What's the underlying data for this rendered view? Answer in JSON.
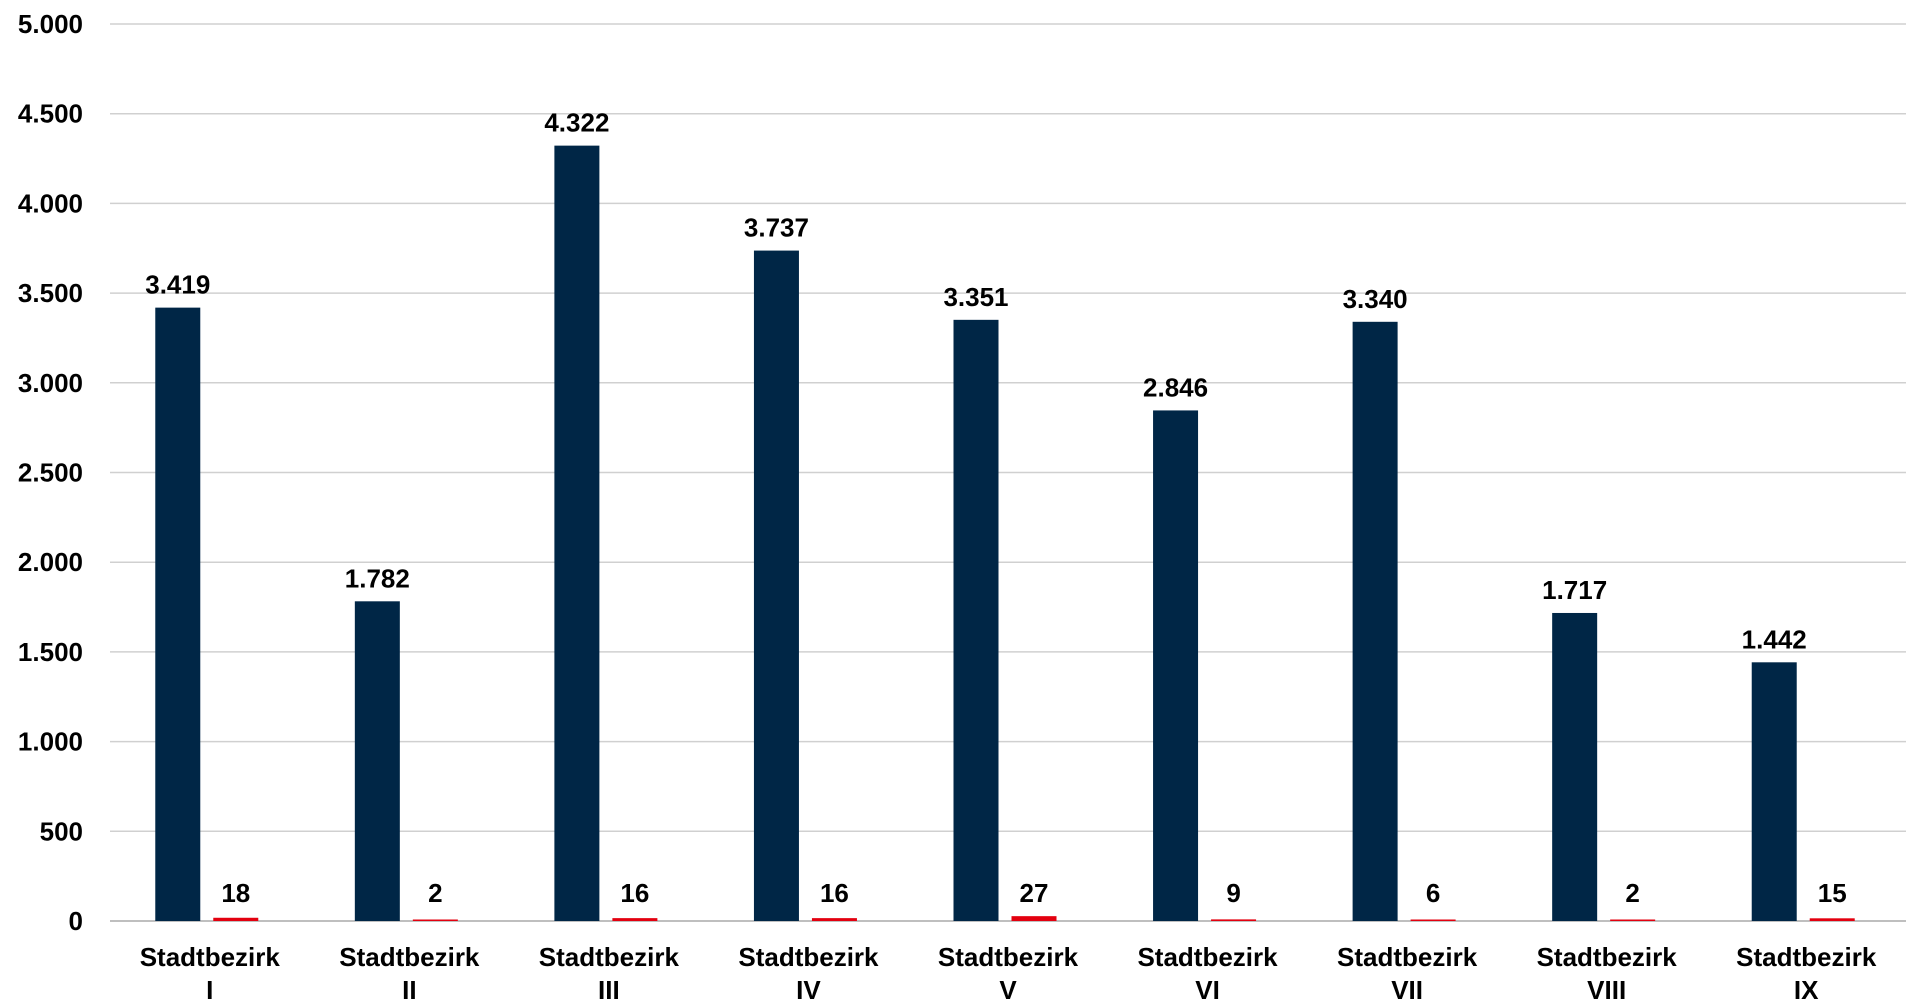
{
  "chart_data": {
    "type": "bar",
    "title": "",
    "xlabel": "",
    "ylabel": "",
    "ylim": [
      0,
      5000
    ],
    "grid": true,
    "y_ticks": [
      0,
      500,
      1000,
      1500,
      2000,
      2500,
      3000,
      3500,
      4000,
      4500,
      5000
    ],
    "y_tick_labels": [
      "0",
      "500",
      "1.000",
      "1.500",
      "2.000",
      "2.500",
      "3.000",
      "3.500",
      "4.000",
      "4.500",
      "5.000"
    ],
    "categories": [
      [
        "Stadtbezirk",
        "I"
      ],
      [
        "Stadtbezirk",
        "II"
      ],
      [
        "Stadtbezirk",
        "III"
      ],
      [
        "Stadtbezirk",
        "IV"
      ],
      [
        "Stadtbezirk",
        "V"
      ],
      [
        "Stadtbezirk",
        "VI"
      ],
      [
        "Stadtbezirk",
        "VII"
      ],
      [
        "Stadtbezirk",
        "VIII"
      ],
      [
        "Stadtbezirk",
        "IX"
      ]
    ],
    "series": [
      {
        "color": "#002646",
        "values": [
          3419,
          1782,
          4322,
          3737,
          3351,
          2846,
          3340,
          1717,
          1442
        ],
        "labels": [
          "3.419",
          "1.782",
          "4.322",
          "3.737",
          "3.351",
          "2.846",
          "3.340",
          "1.717",
          "1.442"
        ]
      },
      {
        "color": "#e3000f",
        "values": [
          18,
          2,
          16,
          16,
          27,
          9,
          6,
          2,
          15
        ],
        "labels": [
          "18",
          "2",
          "16",
          "16",
          "27",
          "9",
          "6",
          "2",
          "15"
        ]
      }
    ],
    "gridline_color": "#d0d0d0",
    "axis_color": "#bfbfbf"
  }
}
